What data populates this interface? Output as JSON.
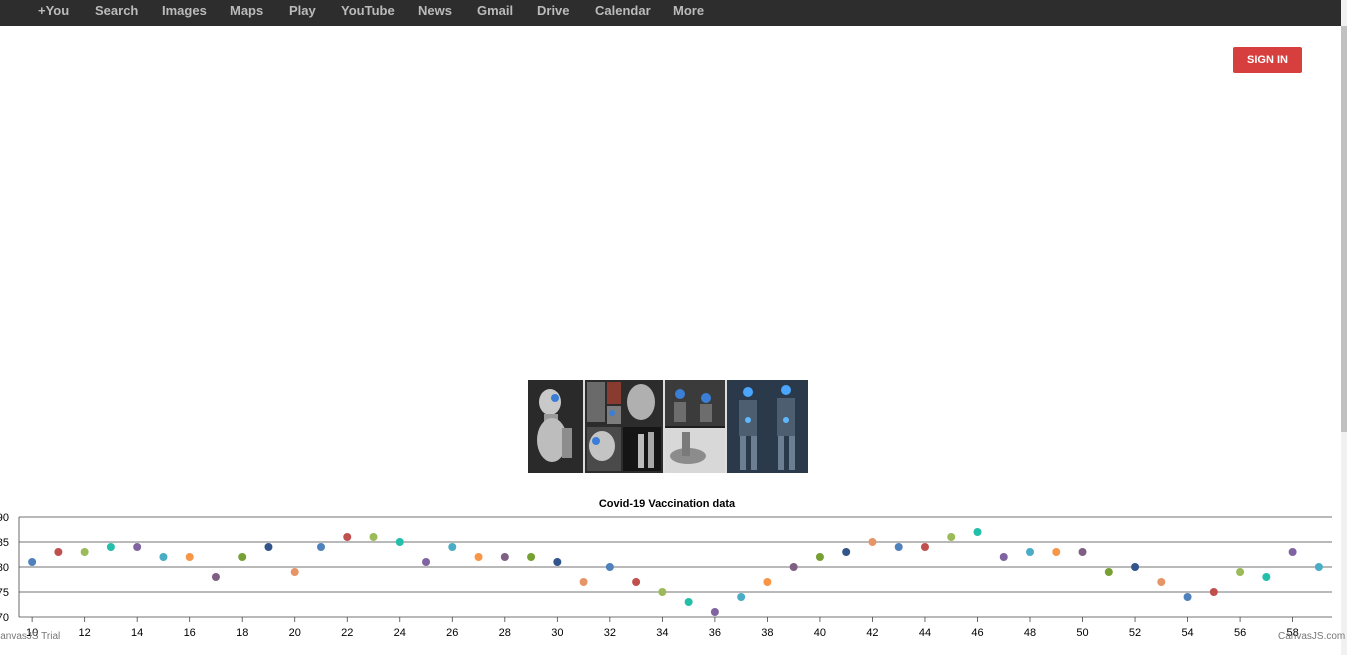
{
  "topnav": {
    "items": [
      {
        "label": "+You"
      },
      {
        "label": "Search"
      },
      {
        "label": "Images"
      },
      {
        "label": "Maps"
      },
      {
        "label": "Play"
      },
      {
        "label": "YouTube"
      },
      {
        "label": "News"
      },
      {
        "label": "Gmail"
      },
      {
        "label": "Drive"
      },
      {
        "label": "Calendar"
      },
      {
        "label": "More"
      }
    ]
  },
  "signin_label": "SIGN IN",
  "colors": {
    "topbar_bg": "#2d2d2d",
    "nav_text": "#bbbbbb",
    "signin_bg": "#d73f3f",
    "point_palette": [
      "#4f81bc",
      "#c0504e",
      "#9bbb58",
      "#23bfaa",
      "#8064a1",
      "#4aacc5",
      "#f79647",
      "#7f6084",
      "#77a033",
      "#33558b",
      "#e59566"
    ]
  },
  "chart_data": {
    "type": "scatter",
    "title": "Covid-19 Vaccination data",
    "xlabel": "",
    "ylabel": "",
    "xlim": [
      9.5,
      59.5
    ],
    "ylim": [
      70,
      90
    ],
    "x_ticks": [
      10,
      12,
      14,
      16,
      18,
      20,
      22,
      24,
      26,
      28,
      30,
      32,
      34,
      36,
      38,
      40,
      42,
      44,
      46,
      48,
      50,
      52,
      54,
      56,
      58
    ],
    "y_ticks": [
      70,
      75,
      80,
      85,
      90
    ],
    "grid": true,
    "legend": "none",
    "points": [
      [
        10,
        81
      ],
      [
        11,
        83
      ],
      [
        12,
        83
      ],
      [
        13,
        84
      ],
      [
        14,
        84
      ],
      [
        15,
        82
      ],
      [
        16,
        82
      ],
      [
        17,
        78
      ],
      [
        18,
        82
      ],
      [
        19,
        84
      ],
      [
        20,
        79
      ],
      [
        21,
        84
      ],
      [
        22,
        86
      ],
      [
        23,
        86
      ],
      [
        24,
        85
      ],
      [
        25,
        81
      ],
      [
        26,
        84
      ],
      [
        27,
        82
      ],
      [
        28,
        82
      ],
      [
        29,
        82
      ],
      [
        30,
        81
      ],
      [
        31,
        77
      ],
      [
        32,
        80
      ],
      [
        33,
        77
      ],
      [
        34,
        75
      ],
      [
        35,
        73
      ],
      [
        36,
        71
      ],
      [
        37,
        74
      ],
      [
        38,
        77
      ],
      [
        39,
        80
      ],
      [
        40,
        82
      ],
      [
        41,
        83
      ],
      [
        42,
        85
      ],
      [
        43,
        84
      ],
      [
        44,
        84
      ],
      [
        45,
        86
      ],
      [
        46,
        87
      ],
      [
        47,
        82
      ],
      [
        48,
        83
      ],
      [
        49,
        83
      ],
      [
        50,
        83
      ],
      [
        51,
        79
      ],
      [
        52,
        80
      ],
      [
        53,
        77
      ],
      [
        54,
        74
      ],
      [
        55,
        75
      ],
      [
        56,
        79
      ],
      [
        57,
        78
      ],
      [
        58,
        83
      ],
      [
        59,
        80
      ]
    ]
  },
  "credits": {
    "left": "CanvasJS Trial",
    "right": "CanvasJS.com"
  }
}
